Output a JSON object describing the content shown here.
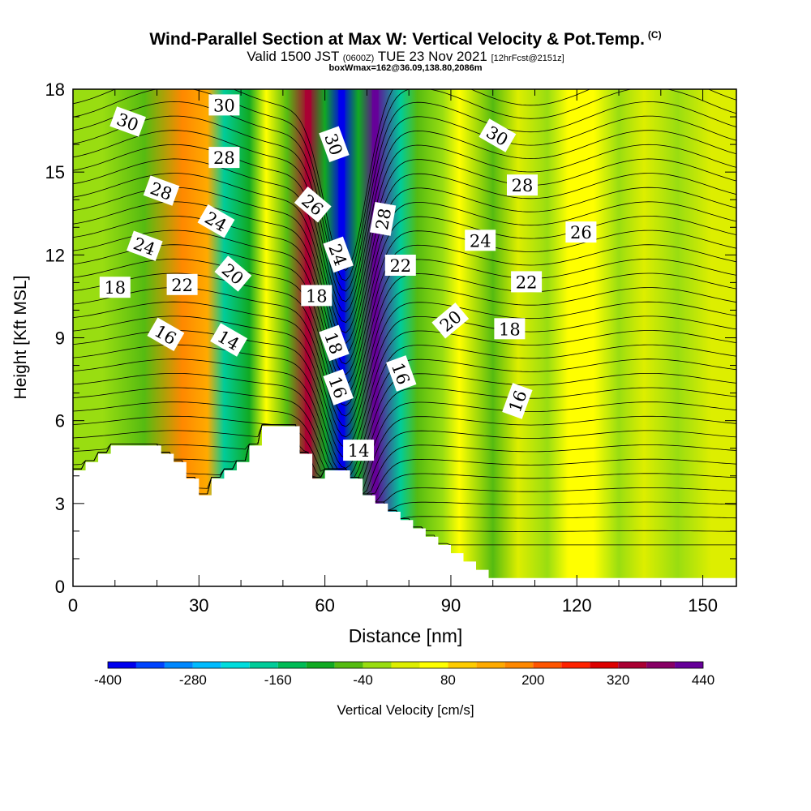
{
  "header": {
    "title": "Wind-Parallel Section at Max W: Vertical Velocity & Pot.Temp.",
    "copyright": "(C)",
    "subtitle_a": "Valid 1500 JST",
    "subtitle_b": "(0600Z)",
    "subtitle_c": "TUE 23 Nov 2021",
    "subtitle_d": "[12hrFcst@2151z]",
    "line3": "boxWmax=162@36.09,138.80,2086m"
  },
  "chart_data": {
    "type": "heatmap",
    "title": "Wind-Parallel Section at Max W: Vertical Velocity & Pot.Temp.",
    "xlabel": "Distance [nm]",
    "ylabel": "Height [Kft MSL]",
    "xlim": [
      0,
      158
    ],
    "ylim": [
      0,
      18
    ],
    "x_ticks": [
      0,
      30,
      60,
      90,
      120,
      150
    ],
    "y_ticks": [
      0,
      3,
      6,
      9,
      12,
      15,
      18
    ],
    "colorbar": {
      "label": "Vertical Velocity [cm/s]",
      "tick_values": [
        -400,
        -280,
        -160,
        -40,
        80,
        200,
        320,
        440
      ],
      "levels": [
        -400,
        -360,
        -320,
        -280,
        -240,
        -200,
        -160,
        -120,
        -80,
        -40,
        0,
        40,
        80,
        120,
        160,
        200,
        240,
        280,
        320,
        360,
        400,
        440
      ],
      "colors": [
        "#0000ee",
        "#0044ff",
        "#0088ff",
        "#00bbff",
        "#00dddd",
        "#00cc99",
        "#00bb55",
        "#11aa22",
        "#55bb11",
        "#99dd11",
        "#ddee00",
        "#ffff00",
        "#ffcc00",
        "#ffaa00",
        "#ff8800",
        "#ff5500",
        "#ff2200",
        "#dd0000",
        "#aa0033",
        "#880066",
        "#660099"
      ]
    },
    "contour_labels": [
      "30",
      "30",
      "28",
      "28",
      "24",
      "24",
      "18",
      "22",
      "20",
      "16",
      "14",
      "26",
      "30",
      "18",
      "24",
      "18",
      "16",
      "14",
      "28",
      "22",
      "16",
      "30",
      "28",
      "24",
      "26",
      "20",
      "18",
      "22",
      "16"
    ],
    "velocity_features": [
      {
        "x": 7,
        "velocity": -40
      },
      {
        "x": 17,
        "velocity": -80
      },
      {
        "x": 26,
        "velocity": 160
      },
      {
        "x": 32,
        "velocity": 120
      },
      {
        "x": 36,
        "velocity": -200
      },
      {
        "x": 42,
        "velocity": -120
      },
      {
        "x": 46,
        "velocity": 40
      },
      {
        "x": 51,
        "velocity": -80
      },
      {
        "x": 56,
        "velocity": 320
      },
      {
        "x": 60,
        "velocity": -120
      },
      {
        "x": 64,
        "velocity": -400
      },
      {
        "x": 68,
        "velocity": -120
      },
      {
        "x": 72,
        "velocity": 400
      },
      {
        "x": 78,
        "velocity": -200
      },
      {
        "x": 82,
        "velocity": -80
      },
      {
        "x": 88,
        "velocity": -40
      },
      {
        "x": 92,
        "velocity": 40
      },
      {
        "x": 100,
        "velocity": -80
      },
      {
        "x": 106,
        "velocity": 0
      },
      {
        "x": 113,
        "velocity": -40
      },
      {
        "x": 118,
        "velocity": 40
      },
      {
        "x": 124,
        "velocity": 60
      },
      {
        "x": 130,
        "velocity": -40
      },
      {
        "x": 136,
        "velocity": 0
      },
      {
        "x": 144,
        "velocity": -40
      },
      {
        "x": 152,
        "velocity": 20
      }
    ],
    "terrain": [
      {
        "x": 0,
        "h": 4.2
      },
      {
        "x": 3,
        "h": 4.5
      },
      {
        "x": 6,
        "h": 4.8
      },
      {
        "x": 9,
        "h": 5.1
      },
      {
        "x": 18,
        "h": 5.1
      },
      {
        "x": 21,
        "h": 4.8
      },
      {
        "x": 24,
        "h": 4.5
      },
      {
        "x": 27,
        "h": 3.9
      },
      {
        "x": 30,
        "h": 3.3
      },
      {
        "x": 33,
        "h": 3.9
      },
      {
        "x": 36,
        "h": 4.2
      },
      {
        "x": 39,
        "h": 4.5
      },
      {
        "x": 42,
        "h": 5.1
      },
      {
        "x": 45,
        "h": 5.8
      },
      {
        "x": 51,
        "h": 5.8
      },
      {
        "x": 54,
        "h": 4.8
      },
      {
        "x": 57,
        "h": 3.9
      },
      {
        "x": 60,
        "h": 4.2
      },
      {
        "x": 63,
        "h": 4.2
      },
      {
        "x": 66,
        "h": 3.9
      },
      {
        "x": 69,
        "h": 3.3
      },
      {
        "x": 72,
        "h": 3.0
      },
      {
        "x": 75,
        "h": 2.7
      },
      {
        "x": 78,
        "h": 2.4
      },
      {
        "x": 81,
        "h": 2.1
      },
      {
        "x": 84,
        "h": 1.8
      },
      {
        "x": 87,
        "h": 1.5
      },
      {
        "x": 90,
        "h": 1.2
      },
      {
        "x": 93,
        "h": 0.9
      },
      {
        "x": 96,
        "h": 0.6
      },
      {
        "x": 99,
        "h": 0.3
      },
      {
        "x": 158,
        "h": 0.3
      }
    ]
  }
}
